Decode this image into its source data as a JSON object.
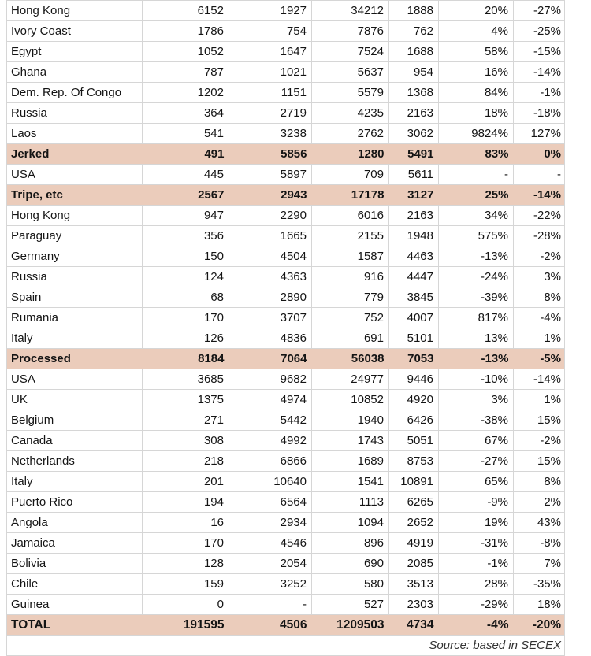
{
  "table": {
    "rows": [
      {
        "style": "data",
        "name": "Hong Kong",
        "cells": [
          "6152",
          "1927",
          "34212",
          "1888",
          "20%",
          "-27%"
        ]
      },
      {
        "style": "data",
        "name": "Ivory Coast",
        "cells": [
          "1786",
          "754",
          "7876",
          "762",
          "4%",
          "-25%"
        ]
      },
      {
        "style": "data",
        "name": "Egypt",
        "cells": [
          "1052",
          "1647",
          "7524",
          "1688",
          "58%",
          "-15%"
        ]
      },
      {
        "style": "data",
        "name": "Ghana",
        "cells": [
          "787",
          "1021",
          "5637",
          "954",
          "16%",
          "-14%"
        ]
      },
      {
        "style": "data",
        "name": "Dem. Rep. Of Congo",
        "cells": [
          "1202",
          "1151",
          "5579",
          "1368",
          "84%",
          "-1%"
        ]
      },
      {
        "style": "data",
        "name": "Russia",
        "cells": [
          "364",
          "2719",
          "4235",
          "2163",
          "18%",
          "-18%"
        ]
      },
      {
        "style": "data",
        "name": "Laos",
        "cells": [
          "541",
          "3238",
          "2762",
          "3062",
          "9824%",
          "127%"
        ]
      },
      {
        "style": "section",
        "name": "Jerked",
        "cells": [
          "491",
          "5856",
          "1280",
          "5491",
          "83%",
          "0%"
        ]
      },
      {
        "style": "data",
        "name": "USA",
        "cells": [
          "445",
          "5897",
          "709",
          "5611",
          "-",
          "-"
        ]
      },
      {
        "style": "section",
        "name": "Tripe, etc",
        "cells": [
          "2567",
          "2943",
          "17178",
          "3127",
          "25%",
          "-14%"
        ]
      },
      {
        "style": "data",
        "name": "Hong Kong",
        "cells": [
          "947",
          "2290",
          "6016",
          "2163",
          "34%",
          "-22%"
        ]
      },
      {
        "style": "data",
        "name": "Paraguay",
        "cells": [
          "356",
          "1665",
          "2155",
          "1948",
          "575%",
          "-28%"
        ]
      },
      {
        "style": "data",
        "name": "Germany",
        "cells": [
          "150",
          "4504",
          "1587",
          "4463",
          "-13%",
          "-2%"
        ]
      },
      {
        "style": "data",
        "name": "Russia",
        "cells": [
          "124",
          "4363",
          "916",
          "4447",
          "-24%",
          "3%"
        ]
      },
      {
        "style": "data",
        "name": "Spain",
        "cells": [
          "68",
          "2890",
          "779",
          "3845",
          "-39%",
          "8%"
        ]
      },
      {
        "style": "data",
        "name": "Rumania",
        "cells": [
          "170",
          "3707",
          "752",
          "4007",
          "817%",
          "-4%"
        ]
      },
      {
        "style": "data",
        "name": "Italy",
        "cells": [
          "126",
          "4836",
          "691",
          "5101",
          "13%",
          "1%"
        ]
      },
      {
        "style": "section",
        "name": "Processed",
        "cells": [
          "8184",
          "7064",
          "56038",
          "7053",
          "-13%",
          "-5%"
        ]
      },
      {
        "style": "data",
        "name": "USA",
        "cells": [
          "3685",
          "9682",
          "24977",
          "9446",
          "-10%",
          "-14%"
        ]
      },
      {
        "style": "data",
        "name": "UK",
        "cells": [
          "1375",
          "4974",
          "10852",
          "4920",
          "3%",
          "1%"
        ]
      },
      {
        "style": "data",
        "name": "Belgium",
        "cells": [
          "271",
          "5442",
          "1940",
          "6426",
          "-38%",
          "15%"
        ]
      },
      {
        "style": "data",
        "name": "Canada",
        "cells": [
          "308",
          "4992",
          "1743",
          "5051",
          "67%",
          "-2%"
        ]
      },
      {
        "style": "data",
        "name": "Netherlands",
        "cells": [
          "218",
          "6866",
          "1689",
          "8753",
          "-27%",
          "15%"
        ]
      },
      {
        "style": "data",
        "name": "Italy",
        "cells": [
          "201",
          "10640",
          "1541",
          "10891",
          "65%",
          "8%"
        ]
      },
      {
        "style": "data",
        "name": "Puerto Rico",
        "cells": [
          "194",
          "6564",
          "1113",
          "6265",
          "-9%",
          "2%"
        ]
      },
      {
        "style": "data",
        "name": "Angola",
        "cells": [
          "16",
          "2934",
          "1094",
          "2652",
          "19%",
          "43%"
        ]
      },
      {
        "style": "data",
        "name": "Jamaica",
        "cells": [
          "170",
          "4546",
          "896",
          "4919",
          "-31%",
          "-8%"
        ]
      },
      {
        "style": "data",
        "name": "Bolivia",
        "cells": [
          "128",
          "2054",
          "690",
          "2085",
          "-1%",
          "7%"
        ]
      },
      {
        "style": "data",
        "name": "Chile",
        "cells": [
          "159",
          "3252",
          "580",
          "3513",
          "28%",
          "-35%"
        ]
      },
      {
        "style": "data",
        "name": "Guinea",
        "cells": [
          "0",
          "-",
          "527",
          "2303",
          "-29%",
          "18%"
        ]
      },
      {
        "style": "total",
        "name": "TOTAL",
        "cells": [
          "191595",
          "4506",
          "1209503",
          "4734",
          "-4%",
          "-20%"
        ]
      }
    ],
    "footer": {
      "source": "Source: based in SECEX"
    }
  },
  "colors": {
    "highlight": "#ebccbb",
    "gridline": "#d6d6d6",
    "text": "#141414"
  }
}
